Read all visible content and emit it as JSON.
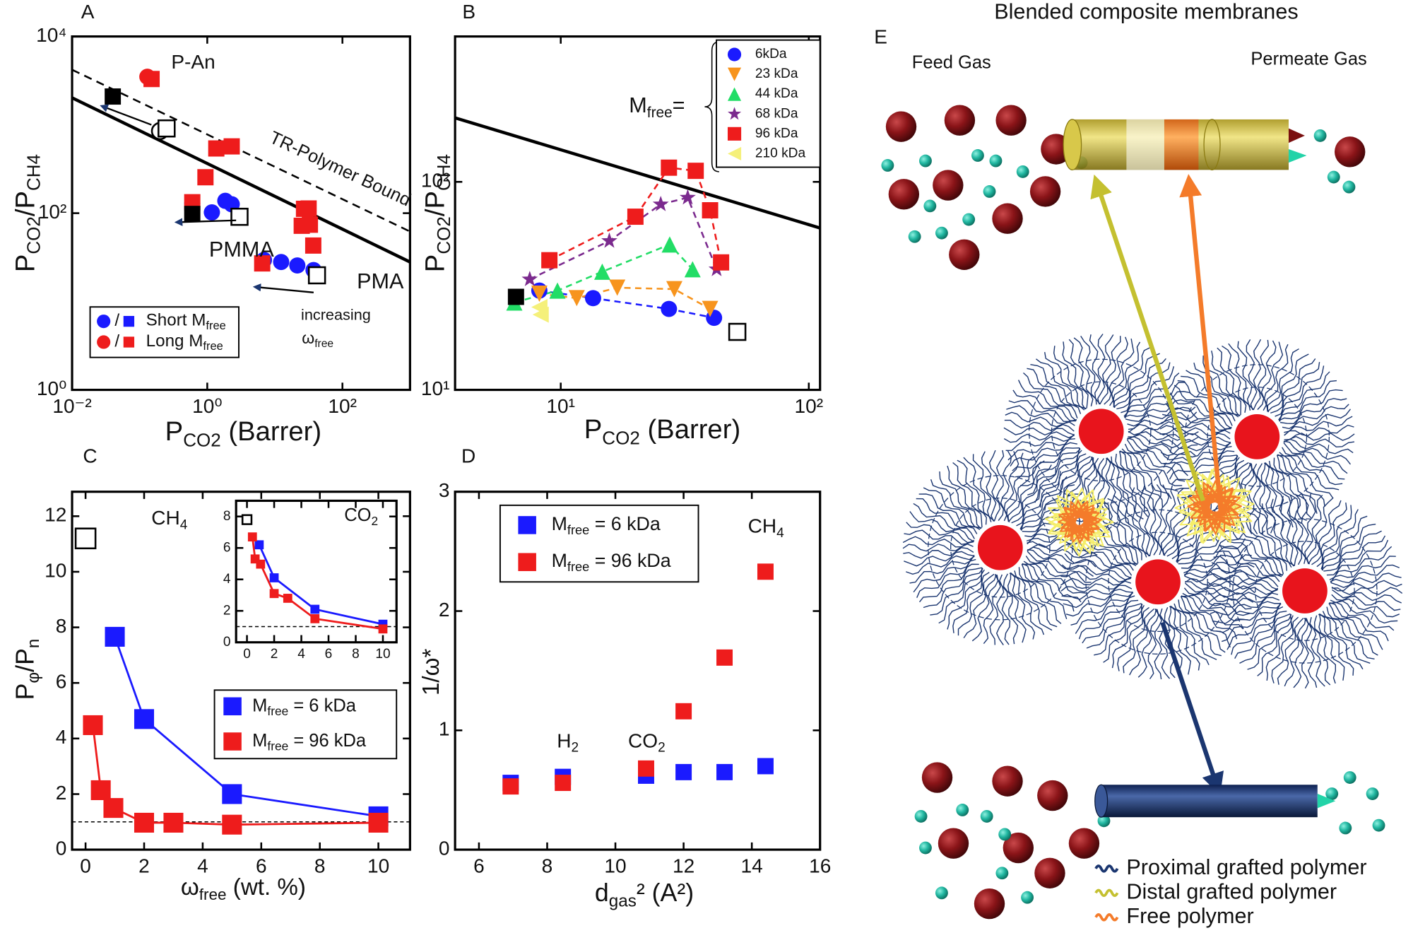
{
  "chart_data": [
    {
      "type": "scatter",
      "label": "A",
      "xlog": true,
      "ylog": true,
      "xlim": [
        0.01,
        1000
      ],
      "ylim": [
        1,
        10000
      ],
      "xticks": [
        {
          "value": 0.01,
          "label": "10⁻²"
        },
        {
          "value": 1,
          "label": "10⁰"
        },
        {
          "value": 100,
          "label": "10²"
        }
      ],
      "yticks": [
        {
          "value": 1,
          "label": "10⁰"
        },
        {
          "value": 100,
          "label": "10²"
        },
        {
          "value": 10000,
          "label": "10⁴"
        }
      ],
      "xlabel": [
        "P",
        "CO2",
        " (Barrer)"
      ],
      "ylabel": [
        "P",
        "CO2",
        "/P",
        "CH4"
      ],
      "legend_separator": "/",
      "series": [
        {
          "name": [
            "Short M",
            "free"
          ],
          "color": "#1a1aff",
          "marker": "circle",
          "x": [
            0.6,
            1.17,
            1.85,
            2.3,
            6.9,
            12.4,
            21.5,
            37.4
          ],
          "y": [
            129,
            102,
            138,
            126,
            29.5,
            28,
            25.6,
            22.7
          ]
        },
        {
          "name": [
            "Long M",
            "free"
          ],
          "color": "#ee1c1c",
          "marker": "square",
          "x": [
            0.15,
            0.6,
            0.94,
            1.36,
            2.3,
            6.5,
            25,
            27,
            31.6,
            33,
            37
          ],
          "y": [
            3300,
            133,
            255,
            540,
            570,
            27,
            72,
            112,
            113,
            74,
            43
          ]
        },
        {
          "color": "#ee1c1c",
          "marker": "circle",
          "x": [
            0.13
          ],
          "y": [
            3500
          ]
        },
        {
          "color": "#000000",
          "marker": "square",
          "x": [
            0.04,
            0.6
          ],
          "y": [
            2090,
            98
          ]
        },
        {
          "color": "#000000",
          "marker": "circle",
          "open": true,
          "x": [
            0.2
          ],
          "y": [
            850
          ]
        },
        {
          "color": "#000000",
          "marker": "square",
          "open": true,
          "x": [
            0.25,
            3.0,
            42
          ],
          "y": [
            910,
            91,
            19.8
          ]
        }
      ],
      "lines": [
        {
          "x": [
            0.01,
            1000
          ],
          "y": [
            4200,
            62
          ],
          "dash": true
        },
        {
          "x": [
            0.01,
            1000
          ],
          "y": [
            2020,
            28
          ]
        }
      ],
      "annotations": [
        "P-An",
        "TR-Polymer Bound",
        "PMMA",
        "PMA",
        "increasing",
        [
          "ω",
          "free"
        ]
      ]
    },
    {
      "type": "scatter",
      "label": "B",
      "xlog": true,
      "ylog": true,
      "xlim": [
        3.75,
        111
      ],
      "ylim": [
        10,
        500
      ],
      "xticks": [
        {
          "value": 10,
          "label": "10¹"
        },
        {
          "value": 100,
          "label": "10²"
        }
      ],
      "yticks": [
        {
          "value": 10,
          "label": "10¹"
        },
        {
          "value": 100,
          "label": "10²"
        }
      ],
      "xlabel": [
        "P",
        "CO2",
        " (Barrer)"
      ],
      "ylabel": [
        "P",
        "CO2",
        "/P",
        "CH4"
      ],
      "connect": "dashed",
      "series": [
        {
          "name": "6kDa",
          "color": "#1a1aff",
          "marker": "circle",
          "x": [
            8.2,
            13.5,
            27.3,
            41.5
          ],
          "y": [
            30,
            27.6,
            24.5,
            22.2
          ]
        },
        {
          "name": "23 kDa",
          "color": "#f7941d",
          "marker": "tri-down",
          "x": [
            8.2,
            11.6,
            16.9,
            28.7,
            40
          ],
          "y": [
            29,
            27.6,
            31,
            30.5,
            24.5
          ]
        },
        {
          "name": "44 kDa",
          "color": "#22dd66",
          "marker": "tri-up",
          "x": [
            6.5,
            9.7,
            14.7,
            27.5,
            34
          ],
          "y": [
            26.3,
            30,
            37,
            50,
            38
          ]
        },
        {
          "name": "68 kDa",
          "color": "#7b2a8e",
          "marker": "star",
          "x": [
            7.5,
            15.7,
            25.3,
            32.5,
            42.5
          ],
          "y": [
            34,
            52,
            78,
            84,
            38
          ]
        },
        {
          "name": "96 kDa",
          "color": "#ee1c1c",
          "marker": "square",
          "x": [
            9,
            20,
            27.3,
            35,
            40,
            44.3
          ],
          "y": [
            42,
            68,
            117,
            113,
            73,
            41
          ]
        },
        {
          "name": "210 kDa",
          "color": "#f5f07a",
          "marker": "tri-left",
          "x": [
            8.2,
            8.3
          ],
          "y": [
            25,
            23
          ]
        },
        {
          "color": "#000000",
          "marker": "square",
          "x": [
            6.6
          ],
          "y": [
            28
          ]
        },
        {
          "color": "#000000",
          "marker": "square",
          "open": true,
          "x": [
            51.5
          ],
          "y": [
            19
          ]
        }
      ],
      "lines": [
        {
          "x": [
            3.75,
            111
          ],
          "y": [
            203,
            60
          ]
        }
      ],
      "annotations": [
        [
          "M",
          "free",
          "="
        ]
      ]
    },
    {
      "type": "scatter",
      "label": "C",
      "xlim": [
        -0.46,
        11.08
      ],
      "ylim": [
        0,
        12.88
      ],
      "xticks": [
        0,
        2,
        4,
        6,
        8,
        10
      ],
      "yticks": [
        0,
        2,
        4,
        6,
        8,
        10,
        12
      ],
      "xlabel": [
        "ω",
        "free",
        " (wt. %)"
      ],
      "ylabel": [
        "P",
        "φ",
        "/P",
        "n"
      ],
      "connect": "solid",
      "hline": 1,
      "series": [
        {
          "name": [
            "M",
            "free",
            " = 6 kDa"
          ],
          "color": "#1a1aff",
          "marker": "square",
          "x": [
            1,
            2,
            5,
            10
          ],
          "y": [
            7.66,
            4.7,
            2.0,
            1.2
          ]
        },
        {
          "name": [
            "M",
            "free",
            " = 96 kDa"
          ],
          "color": "#ee1c1c",
          "marker": "square",
          "x": [
            0.25,
            0.52,
            0.95,
            2,
            3,
            5,
            10
          ],
          "y": [
            4.48,
            2.14,
            1.5,
            0.97,
            0.97,
            0.9,
            0.97
          ]
        },
        {
          "color": "#000000",
          "marker": "square",
          "open": true,
          "x": [
            0
          ],
          "y": [
            11.2
          ]
        }
      ],
      "annotations": [
        [
          "CH",
          "4"
        ]
      ]
    },
    {
      "type": "scatter",
      "xlim": [
        -0.8,
        11
      ],
      "ylim": [
        0,
        9
      ],
      "xticks": [
        0,
        2,
        4,
        6,
        8,
        10
      ],
      "yticks": [
        0,
        2,
        4,
        6,
        8
      ],
      "connect": "solid",
      "hline": 1,
      "series": [
        {
          "color": "#1a1aff",
          "marker": "square",
          "x": [
            0.9,
            2,
            5,
            10
          ],
          "y": [
            6.2,
            4.1,
            2.1,
            1.15
          ]
        },
        {
          "color": "#ee1c1c",
          "marker": "square",
          "x": [
            0.4,
            0.6,
            1,
            2,
            3,
            5,
            10
          ],
          "y": [
            6.7,
            5.3,
            4.97,
            3.1,
            2.8,
            1.5,
            0.85
          ]
        },
        {
          "color": "#000000",
          "marker": "square",
          "open": true,
          "x": [
            0
          ],
          "y": [
            7.8
          ]
        }
      ],
      "annotations": [
        [
          "CO",
          "2"
        ]
      ]
    },
    {
      "type": "scatter",
      "label": "D",
      "xlim": [
        5.3,
        16
      ],
      "ylim": [
        0,
        3
      ],
      "xticks": [
        6,
        8,
        10,
        12,
        14,
        16
      ],
      "yticks": [
        0,
        1,
        2,
        3
      ],
      "xlabel": [
        "d",
        "gas",
        "² (A²)"
      ],
      "ylabel": "1/ω*",
      "series": [
        {
          "name": [
            "M",
            "free",
            " = 6 kDa"
          ],
          "color": "#1a1aff",
          "marker": "square",
          "x": [
            6.93,
            8.46,
            10.9,
            12,
            13.2,
            14.4
          ],
          "y": [
            0.56,
            0.61,
            0.62,
            0.65,
            0.65,
            0.7
          ]
        },
        {
          "name": [
            "M",
            "free",
            " = 96 kDa"
          ],
          "color": "#ee1c1c",
          "marker": "square",
          "x": [
            6.93,
            8.46,
            10.9,
            12,
            13.2,
            14.4
          ],
          "y": [
            0.53,
            0.56,
            0.68,
            1.16,
            1.61,
            2.33
          ]
        }
      ],
      "annotations": [
        [
          "H",
          "2"
        ],
        [
          "CO",
          "2"
        ],
        [
          "CH",
          "4"
        ]
      ]
    }
  ],
  "diagram": {
    "title": "Blended composite membranes",
    "label": "E",
    "feed": "Feed Gas",
    "permeate": "Permeate Gas",
    "legend": [
      "Proximal grafted polymer",
      "Distal grafted polymer",
      "Free polymer"
    ]
  }
}
